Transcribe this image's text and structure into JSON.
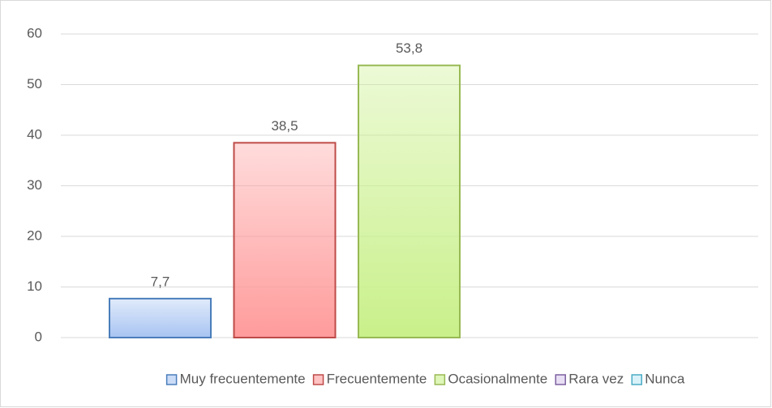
{
  "chart_data": {
    "type": "bar",
    "series": [
      {
        "name": "Muy frecuentemente",
        "color": "#4a7ebb",
        "fill": "#a8c4f2",
        "values": [
          7.7
        ],
        "value_labels": [
          "7,7"
        ]
      },
      {
        "name": "Frecuentemente",
        "color": "#be4b48",
        "fill": "#ff9b9b",
        "values": [
          38.5
        ],
        "value_labels": [
          "38,5"
        ]
      },
      {
        "name": "Ocasionalmente",
        "color": "#98b954",
        "fill": "#c9f08a",
        "values": [
          53.8
        ],
        "value_labels": [
          "53,8"
        ]
      },
      {
        "name": "Rara vez",
        "color": "#7d60a0",
        "fill": "#d9c9ec",
        "values": [
          null
        ],
        "value_labels": [
          null
        ]
      },
      {
        "name": "Nunca",
        "color": "#4bacc6",
        "fill": "#bfe9f5",
        "values": [
          null
        ],
        "value_labels": [
          null
        ]
      }
    ],
    "ylim": [
      0,
      60
    ],
    "yticks": [
      0,
      10,
      20,
      30,
      40,
      50,
      60
    ],
    "grid": true,
    "legend": "bottom"
  }
}
